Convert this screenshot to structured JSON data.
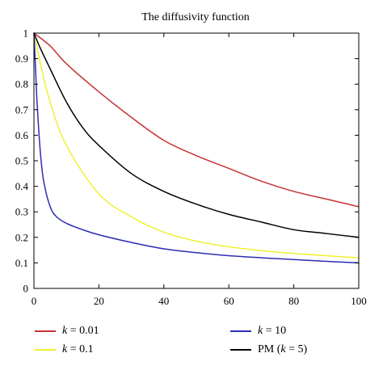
{
  "chart_data": {
    "type": "line",
    "title": "The diffusivity function",
    "xlabel": "",
    "ylabel": "",
    "xlim": [
      0,
      100
    ],
    "ylim": [
      0,
      1
    ],
    "xticks": [
      "0",
      "20",
      "40",
      "60",
      "80",
      "100"
    ],
    "yticks": [
      "0",
      "0.1",
      "0.2",
      "0.3",
      "0.4",
      "0.5",
      "0.6",
      "0.7",
      "0.8",
      "0.9",
      "1"
    ],
    "grid": false,
    "legend_position": "bottom",
    "series": [
      {
        "name": "k = 0.01",
        "name_parts": [
          "k",
          " = 0.01"
        ],
        "color": "#c83232",
        "x": [
          0,
          5,
          10,
          20,
          30,
          40,
          50,
          60,
          70,
          80,
          90,
          100
        ],
        "y": [
          1,
          0.95,
          0.88,
          0.77,
          0.67,
          0.58,
          0.52,
          0.47,
          0.42,
          0.38,
          0.35,
          0.32
        ]
      },
      {
        "name": "k = 0.1",
        "name_parts": [
          "k",
          " = 0.1"
        ],
        "color": "#f0f032",
        "x": [
          0,
          2,
          5,
          10,
          20,
          30,
          40,
          50,
          60,
          70,
          80,
          90,
          100
        ],
        "y": [
          1,
          0.88,
          0.73,
          0.56,
          0.37,
          0.28,
          0.22,
          0.185,
          0.163,
          0.148,
          0.137,
          0.128,
          0.12
        ]
      },
      {
        "name": "k = 10",
        "name_parts": [
          "k",
          " = 10"
        ],
        "color": "#2d2db4",
        "x": [
          0,
          0.5,
          1,
          2,
          3,
          5,
          7,
          10,
          15,
          20,
          30,
          40,
          50,
          60,
          70,
          80,
          90,
          100
        ],
        "y": [
          1,
          0.86,
          0.72,
          0.53,
          0.42,
          0.32,
          0.28,
          0.255,
          0.23,
          0.21,
          0.18,
          0.155,
          0.14,
          0.128,
          0.12,
          0.113,
          0.106,
          0.1
        ]
      },
      {
        "name": "PM (k = 5)",
        "name_parts": [
          "PM (",
          "k",
          " = 5)"
        ],
        "color": "#000000",
        "x": [
          0,
          2,
          5,
          10,
          15,
          20,
          30,
          40,
          50,
          60,
          70,
          80,
          90,
          100
        ],
        "y": [
          1,
          0.94,
          0.86,
          0.73,
          0.63,
          0.56,
          0.45,
          0.38,
          0.33,
          0.29,
          0.26,
          0.23,
          0.215,
          0.2
        ]
      }
    ]
  }
}
